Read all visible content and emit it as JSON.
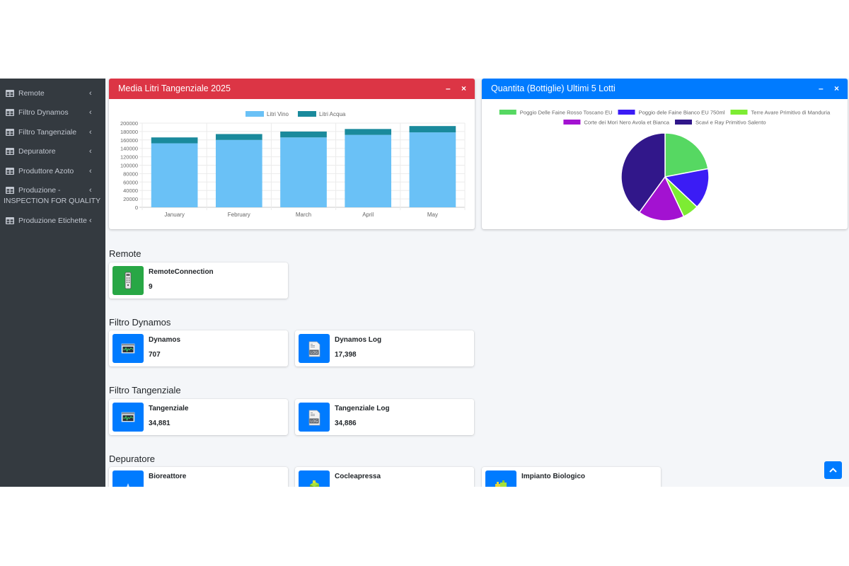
{
  "sidebar": {
    "items": [
      {
        "label": "Remote"
      },
      {
        "label": "Filtro Dynamos"
      },
      {
        "label": "Filtro Tangenziale"
      },
      {
        "label": "Depuratore"
      },
      {
        "label": "Produttore Azoto"
      },
      {
        "label": "Produzione -",
        "label2": "INSPECTION FOR QUALITY"
      },
      {
        "label": "Produzione Etichette"
      }
    ]
  },
  "bar_card": {
    "title": "Media Litri Tangenziale 2025",
    "minimize": "–",
    "close": "×"
  },
  "pie_card": {
    "title": "Quantita (Bottiglie) Ultimi 5 Lotti",
    "minimize": "–",
    "close": "×"
  },
  "chart_data": [
    {
      "type": "bar",
      "stacked": true,
      "categories": [
        "January",
        "February",
        "March",
        "April",
        "May"
      ],
      "series": [
        {
          "name": "Litri Vino",
          "color": "#6ac1f6",
          "values": [
            152000,
            160000,
            166000,
            172000,
            178000
          ]
        },
        {
          "name": "Litri Acqua",
          "color": "#1a8a9c",
          "values": [
            14000,
            14000,
            14000,
            14000,
            15000
          ]
        }
      ],
      "ylim": [
        0,
        200000
      ],
      "yticks": [
        0,
        20000,
        40000,
        60000,
        80000,
        100000,
        120000,
        140000,
        160000,
        180000,
        200000
      ],
      "grid": true,
      "legend": "top"
    },
    {
      "type": "pie",
      "labels": [
        "Poggio Delle Faine Rosso Toscano EU",
        "Poggio dele Faine Bianco EU 750ml",
        "Terre Avare Primitivo di Manduria",
        "Corte dei Mori Nero Avola et Bianca",
        "Scavi e Ray Primitivo Salento"
      ],
      "values": [
        22,
        15,
        6,
        17,
        40
      ],
      "colors": [
        "#56d862",
        "#3b1cf5",
        "#7dec33",
        "#a312d1",
        "#31178a"
      ],
      "legend": "top"
    }
  ],
  "sections": [
    {
      "title": "Remote",
      "boxes": [
        {
          "title": "RemoteConnection",
          "value": "9",
          "icon": "remote-control-icon",
          "color": "green"
        }
      ]
    },
    {
      "title": "Filtro Dynamos",
      "boxes": [
        {
          "title": "Dynamos",
          "value": "707",
          "icon": "monitor-chart-icon",
          "color": "blue"
        },
        {
          "title": "Dynamos Log",
          "value": "17,398",
          "icon": "log-file-icon",
          "color": "blue"
        }
      ]
    },
    {
      "title": "Filtro Tangenziale",
      "boxes": [
        {
          "title": "Tangenziale",
          "value": "34,881",
          "icon": "monitor-chart-icon",
          "color": "blue"
        },
        {
          "title": "Tangenziale Log",
          "value": "34,886",
          "icon": "log-file-icon",
          "color": "blue"
        }
      ]
    },
    {
      "title": "Depuratore",
      "boxes": [
        {
          "title": "Bioreattore",
          "icon": "water-drop-icon",
          "color": "blue"
        },
        {
          "title": "Cocleapressa",
          "icon": "press-machine-icon",
          "color": "blue"
        },
        {
          "title": "Impianto Biologico",
          "icon": "plant-machine-icon",
          "color": "blue"
        }
      ]
    }
  ],
  "log_text": "LOG"
}
